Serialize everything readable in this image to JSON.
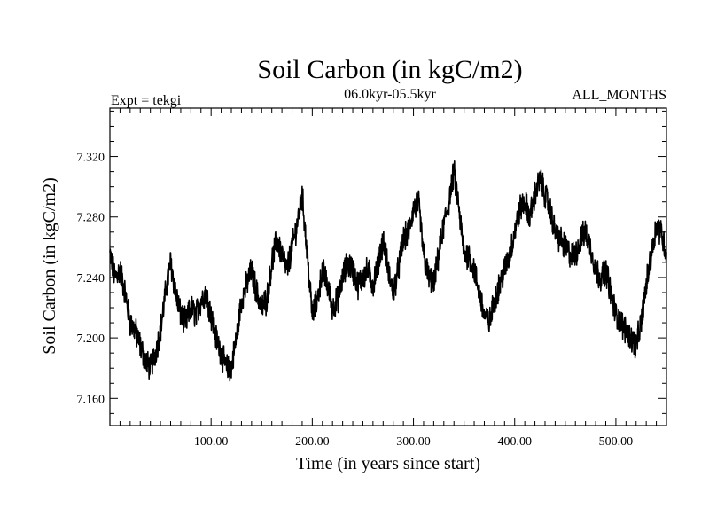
{
  "chart_data": {
    "type": "line",
    "title": "Soil Carbon (in kgC/m2)",
    "subtitle": "06.0kyr-05.5kyr",
    "expt_label": "Expt = tekgi",
    "months_label": "ALL_MONTHS",
    "xlabel": "Time (in years since start)",
    "ylabel": "Soil Carbon (in kgC/m2)",
    "xlim": [
      0,
      550
    ],
    "ylim": [
      7.142,
      7.352
    ],
    "x_ticks": [
      {
        "value": 100,
        "label": "100.00"
      },
      {
        "value": 200,
        "label": "200.00"
      },
      {
        "value": 300,
        "label": "300.00"
      },
      {
        "value": 400,
        "label": "400.00"
      },
      {
        "value": 500,
        "label": "500.00"
      }
    ],
    "y_ticks": [
      {
        "value": 7.16,
        "label": "7.160"
      },
      {
        "value": 7.2,
        "label": "7.200"
      },
      {
        "value": 7.24,
        "label": "7.240"
      },
      {
        "value": 7.28,
        "label": "7.280"
      },
      {
        "value": 7.32,
        "label": "7.320"
      }
    ],
    "series": [
      {
        "name": "Soil Carbon",
        "color": "#000000",
        "band_halfwidth": 0.008,
        "x": [
          0,
          5,
          10,
          15,
          20,
          25,
          30,
          35,
          40,
          45,
          50,
          55,
          60,
          65,
          70,
          75,
          80,
          85,
          90,
          95,
          100,
          105,
          110,
          115,
          120,
          125,
          130,
          135,
          140,
          145,
          150,
          155,
          160,
          165,
          170,
          175,
          180,
          185,
          190,
          195,
          200,
          205,
          210,
          215,
          220,
          225,
          230,
          235,
          240,
          245,
          250,
          255,
          260,
          265,
          270,
          275,
          280,
          285,
          290,
          295,
          300,
          305,
          310,
          315,
          320,
          325,
          330,
          335,
          340,
          345,
          350,
          355,
          360,
          365,
          370,
          375,
          380,
          385,
          390,
          395,
          400,
          405,
          410,
          415,
          420,
          425,
          430,
          435,
          440,
          445,
          450,
          455,
          460,
          465,
          470,
          475,
          480,
          485,
          490,
          495,
          500,
          505,
          510,
          515,
          520,
          525,
          530,
          535,
          540,
          545,
          550
        ],
        "values": [
          7.255,
          7.24,
          7.245,
          7.23,
          7.21,
          7.205,
          7.195,
          7.185,
          7.18,
          7.19,
          7.205,
          7.23,
          7.25,
          7.23,
          7.215,
          7.21,
          7.22,
          7.215,
          7.225,
          7.23,
          7.215,
          7.2,
          7.19,
          7.18,
          7.18,
          7.2,
          7.225,
          7.235,
          7.245,
          7.23,
          7.22,
          7.225,
          7.25,
          7.265,
          7.255,
          7.245,
          7.26,
          7.275,
          7.295,
          7.255,
          7.215,
          7.225,
          7.245,
          7.235,
          7.22,
          7.225,
          7.24,
          7.25,
          7.245,
          7.235,
          7.24,
          7.245,
          7.235,
          7.25,
          7.265,
          7.245,
          7.23,
          7.245,
          7.265,
          7.27,
          7.285,
          7.29,
          7.255,
          7.24,
          7.235,
          7.255,
          7.275,
          7.29,
          7.31,
          7.285,
          7.255,
          7.255,
          7.245,
          7.23,
          7.215,
          7.21,
          7.225,
          7.235,
          7.245,
          7.255,
          7.27,
          7.285,
          7.29,
          7.28,
          7.295,
          7.305,
          7.295,
          7.285,
          7.27,
          7.265,
          7.26,
          7.255,
          7.255,
          7.265,
          7.27,
          7.26,
          7.245,
          7.24,
          7.245,
          7.23,
          7.215,
          7.21,
          7.205,
          7.2,
          7.195,
          7.21,
          7.235,
          7.255,
          7.275,
          7.27,
          7.255
        ]
      }
    ]
  }
}
